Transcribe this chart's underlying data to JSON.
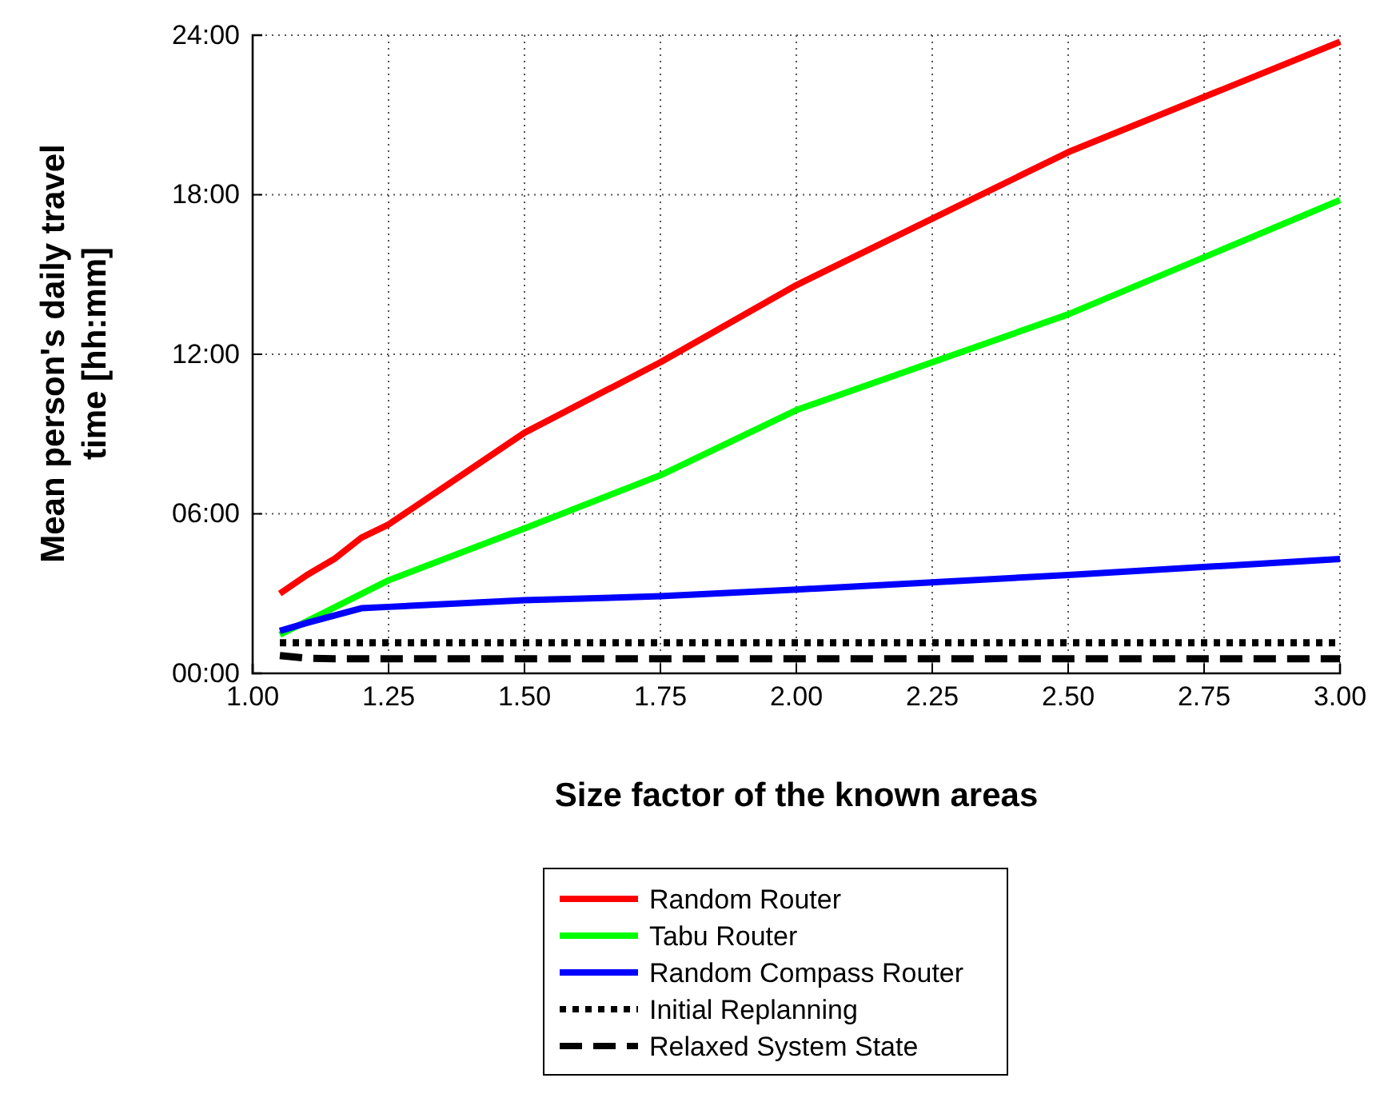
{
  "chart_data": {
    "type": "line",
    "xlabel": "Size factor of the known areas",
    "ylabel": "Mean person's daily travel time [hh:mm]",
    "x": [
      1.05,
      1.1,
      1.15,
      1.2,
      1.25,
      1.5,
      1.75,
      2.0,
      2.5,
      3.0
    ],
    "series": [
      {
        "name": "Random Router",
        "color": "#ff0000",
        "line_style": "solid",
        "values": [
          3.0,
          3.7,
          4.3,
          5.1,
          5.6,
          9.05,
          11.7,
          14.6,
          19.6,
          23.75
        ]
      },
      {
        "name": "Tabu Router",
        "color": "#00ff00",
        "line_style": "solid",
        "x": [
          1.05,
          1.25,
          1.5,
          1.75,
          2.0,
          2.5,
          3.0
        ],
        "values": [
          1.45,
          3.5,
          5.45,
          7.45,
          9.9,
          13.5,
          17.8
        ]
      },
      {
        "name": "Random Compass Router",
        "color": "#0000ff",
        "line_style": "solid",
        "x": [
          1.05,
          1.1,
          1.2,
          1.25,
          1.5,
          1.75,
          2.0,
          2.5,
          3.0
        ],
        "values": [
          1.6,
          1.9,
          2.45,
          2.5,
          2.75,
          2.9,
          3.15,
          3.7,
          4.3
        ]
      },
      {
        "name": "Initial Replanning",
        "color": "#000000",
        "line_style": "dotted",
        "x": [
          1.05,
          3.0
        ],
        "values": [
          1.15,
          1.15
        ]
      },
      {
        "name": "Relaxed System State",
        "color": "#000000",
        "line_style": "dashed",
        "x": [
          1.05,
          1.1,
          1.15,
          3.0
        ],
        "values": [
          0.67,
          0.57,
          0.55,
          0.55
        ]
      }
    ],
    "xlim": [
      1.0,
      3.0
    ],
    "xticks": [
      {
        "value": 1,
        "label": "1.00"
      },
      {
        "value": 1.25,
        "label": "1.25"
      },
      {
        "value": 1.5,
        "label": "1.50"
      },
      {
        "value": 1.75,
        "label": "1.75"
      },
      {
        "value": 2,
        "label": "2.00"
      },
      {
        "value": 2.25,
        "label": "2.25"
      },
      {
        "value": 2.5,
        "label": "2.50"
      },
      {
        "value": 2.75,
        "label": "2.75"
      },
      {
        "value": 3,
        "label": "3.00"
      }
    ],
    "ylim": [
      0,
      24
    ],
    "yticks": [
      {
        "value": 0,
        "label": "00:00"
      },
      {
        "value": 6,
        "label": "06:00"
      },
      {
        "value": 12,
        "label": "12:00"
      },
      {
        "value": 18,
        "label": "18:00"
      },
      {
        "value": 24,
        "label": "24:00"
      }
    ],
    "grid": true,
    "legend": "bottom"
  }
}
